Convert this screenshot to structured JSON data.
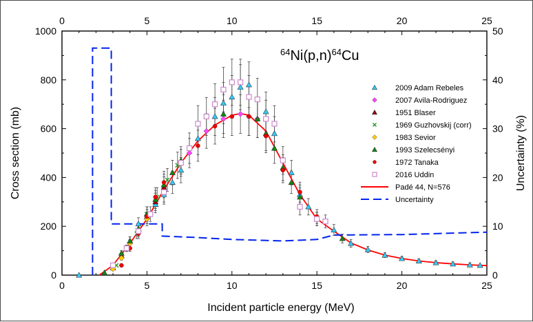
{
  "chart_data": {
    "type": "scatter",
    "title": "64Ni(p,n)64Cu",
    "title_parts": {
      "sup1": "64",
      "main1": "Ni(p,n)",
      "sup2": "64",
      "main2": "Cu"
    },
    "xlabel": "Incident particle energy (MeV)",
    "ylabel": "Cross section (mb)",
    "y2label": "Uncertainty (%)",
    "xlim": [
      0,
      25
    ],
    "ylim": [
      0,
      1000
    ],
    "y2lim": [
      0,
      50
    ],
    "xticks": [
      "0",
      "5",
      "10",
      "15",
      "20",
      "25"
    ],
    "yticks": [
      "0",
      "200",
      "400",
      "600",
      "800",
      "1000"
    ],
    "y2ticks": [
      "0",
      "10",
      "20",
      "30",
      "40",
      "50"
    ],
    "legend_position": "right",
    "series": [
      {
        "name": "2009 Adam Rebeles",
        "marker": "triangle",
        "color": "#33ccff",
        "points": [
          [
            1.0,
            0
          ],
          [
            4.5,
            210
          ],
          [
            5.0,
            250
          ],
          [
            5.5,
            290
          ],
          [
            6.0,
            330
          ],
          [
            6.5,
            380
          ],
          [
            7.0,
            430
          ],
          [
            8.0,
            560
          ],
          [
            9.0,
            650
          ],
          [
            9.5,
            705
          ],
          [
            10.0,
            730
          ],
          [
            10.5,
            770
          ],
          [
            11.0,
            780
          ],
          [
            12.0,
            670
          ],
          [
            12.5,
            580
          ],
          [
            13.5,
            420
          ],
          [
            14.0,
            330
          ],
          [
            14.5,
            280
          ],
          [
            15.0,
            230
          ],
          [
            16.0,
            185
          ],
          [
            17.0,
            130
          ],
          [
            18.0,
            105
          ],
          [
            19.0,
            82
          ],
          [
            20.0,
            68
          ],
          [
            21.0,
            58
          ],
          [
            22.0,
            51
          ],
          [
            23.0,
            46
          ],
          [
            24.0,
            42
          ],
          [
            24.6,
            40
          ]
        ]
      },
      {
        "name": "2007 Avila-Rodriguez",
        "marker": "diamond",
        "color": "#ff44ff",
        "points": [
          [
            7.5,
            500
          ],
          [
            8.5,
            590
          ],
          [
            9.5,
            640
          ],
          [
            10.5,
            660
          ],
          [
            11.0,
            650
          ],
          [
            11.5,
            640
          ]
        ]
      },
      {
        "name": "1951 Blaser",
        "marker": "triangle",
        "color": "#990000",
        "points": [
          [
            3.0,
            30
          ],
          [
            3.5,
            80
          ],
          [
            4.0,
            140
          ],
          [
            4.5,
            190
          ],
          [
            5.0,
            240
          ],
          [
            5.5,
            300
          ],
          [
            6.0,
            360
          ]
        ]
      },
      {
        "name": "1969 Guzhovskij (corr)",
        "marker": "x",
        "color": "#229922",
        "points": [
          [
            3.2,
            40
          ],
          [
            3.8,
            110
          ],
          [
            4.4,
            170
          ],
          [
            5.0,
            250
          ],
          [
            5.6,
            320
          ],
          [
            6.2,
            390
          ],
          [
            6.8,
            450
          ]
        ]
      },
      {
        "name": "1983 Sevior",
        "marker": "diamond",
        "color": "#ffcc00",
        "points": [
          [
            3.0,
            25
          ],
          [
            3.5,
            70
          ],
          [
            4.0,
            130
          ],
          [
            4.5,
            180
          ],
          [
            5.0,
            230
          ]
        ]
      },
      {
        "name": "1993 Szelecsényi",
        "marker": "triangle",
        "color": "#118811",
        "points": [
          [
            2.5,
            10
          ],
          [
            3.0,
            40
          ],
          [
            3.5,
            90
          ],
          [
            4.0,
            140
          ],
          [
            4.5,
            190
          ],
          [
            5.0,
            250
          ],
          [
            5.5,
            310
          ],
          [
            6.0,
            370
          ],
          [
            6.5,
            420
          ],
          [
            7.0,
            470
          ],
          [
            9.5,
            660
          ],
          [
            11.5,
            640
          ],
          [
            12.0,
            580
          ],
          [
            12.5,
            520
          ],
          [
            13.0,
            440
          ],
          [
            13.5,
            380
          ],
          [
            14.0,
            320
          ],
          [
            16.5,
            150
          ]
        ]
      },
      {
        "name": "1972 Tanaka",
        "marker": "dot",
        "color": "#ee0000",
        "points": [
          [
            3.5,
            40
          ],
          [
            4.0,
            110
          ],
          [
            4.5,
            170
          ],
          [
            5.0,
            240
          ],
          [
            5.5,
            320
          ],
          [
            6.0,
            380
          ],
          [
            8.0,
            530
          ],
          [
            9.0,
            610
          ],
          [
            10.0,
            650
          ],
          [
            11.0,
            650
          ],
          [
            12.0,
            570
          ],
          [
            13.0,
            430
          ],
          [
            14.0,
            340
          ],
          [
            15.0,
            240
          ]
        ]
      },
      {
        "name": "2016 Uddin",
        "marker": "square",
        "color": "#cc88cc",
        "points": [
          [
            3.0,
            40
          ],
          [
            3.8,
            110
          ],
          [
            4.5,
            180
          ],
          [
            5.2,
            250
          ],
          [
            6.0,
            340
          ],
          [
            7.0,
            460
          ],
          [
            7.5,
            520
          ],
          [
            8.0,
            620
          ],
          [
            8.5,
            650
          ],
          [
            9.0,
            700
          ],
          [
            9.5,
            760
          ],
          [
            10.0,
            790
          ],
          [
            10.5,
            790
          ],
          [
            11.0,
            730
          ],
          [
            11.5,
            720
          ],
          [
            12.0,
            640
          ],
          [
            12.5,
            620
          ],
          [
            13.0,
            470
          ],
          [
            14.0,
            280
          ],
          [
            15.0,
            230
          ],
          [
            15.5,
            220
          ]
        ]
      },
      {
        "name": "Padé 44, N=576",
        "type": "line",
        "style": "solid",
        "color": "#ff0000",
        "points": [
          [
            2.2,
            0
          ],
          [
            3.0,
            40
          ],
          [
            4.0,
            130
          ],
          [
            5.0,
            230
          ],
          [
            6.0,
            350
          ],
          [
            7.0,
            460
          ],
          [
            8.0,
            550
          ],
          [
            9.0,
            615
          ],
          [
            10.0,
            655
          ],
          [
            10.5,
            662
          ],
          [
            11.0,
            655
          ],
          [
            12.0,
            590
          ],
          [
            13.0,
            460
          ],
          [
            14.0,
            330
          ],
          [
            15.0,
            230
          ],
          [
            16.0,
            180
          ],
          [
            17.0,
            132
          ],
          [
            18.0,
            103
          ],
          [
            19.0,
            82
          ],
          [
            20.0,
            68
          ],
          [
            21.0,
            58
          ],
          [
            22.0,
            51
          ],
          [
            23.0,
            46
          ],
          [
            24.0,
            42
          ],
          [
            25.0,
            39
          ]
        ]
      },
      {
        "name": "Uncertainty",
        "type": "line",
        "style": "dashed",
        "axis": "right",
        "color": "#0022ee",
        "points": [
          [
            1.8,
            0
          ],
          [
            1.8,
            46.5
          ],
          [
            2.9,
            46.5
          ],
          [
            2.9,
            10.5
          ],
          [
            5.9,
            10.5
          ],
          [
            5.9,
            8.0
          ],
          [
            8.0,
            7.7
          ],
          [
            10.0,
            7.3
          ],
          [
            13.0,
            7.0
          ],
          [
            15.0,
            7.3
          ],
          [
            16.0,
            8.2
          ],
          [
            20.0,
            8.3
          ],
          [
            25.0,
            8.8
          ]
        ]
      }
    ]
  }
}
